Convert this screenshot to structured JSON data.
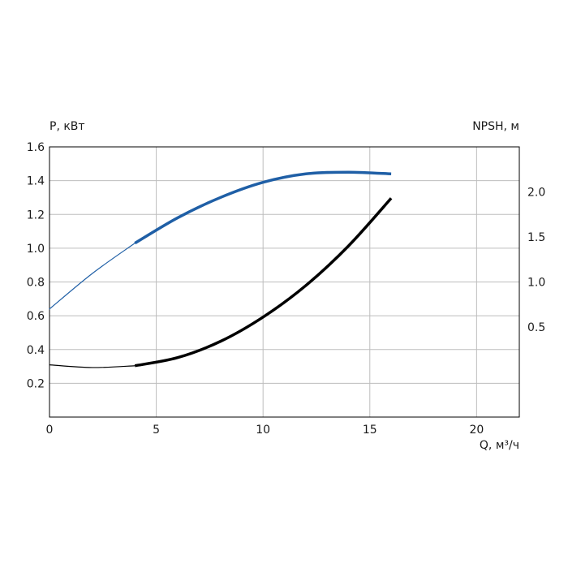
{
  "chart_data": {
    "type": "line",
    "left_axis_label": "P, кВт",
    "right_axis_label": "NPSH, м",
    "xlabel": "Q, м³/ч",
    "xlim": [
      0,
      22
    ],
    "ylim_left": [
      0,
      1.6
    ],
    "ylim_right": [
      -0.5,
      2.5
    ],
    "x_ticks": [
      "0",
      "5",
      "10",
      "15",
      "20"
    ],
    "x_tick_values": [
      0,
      5,
      10,
      15,
      20
    ],
    "y_left_ticks": [
      "0.2",
      "0.4",
      "0.6",
      "0.8",
      "1.0",
      "1.2",
      "1.4",
      "1.6"
    ],
    "y_left_tick_values": [
      0.2,
      0.4,
      0.6,
      0.8,
      1.0,
      1.2,
      1.4,
      1.6
    ],
    "y_right_ticks": [
      "0.5",
      "1.0",
      "1.5",
      "2.0"
    ],
    "y_right_tick_values": [
      0.5,
      1.0,
      1.5,
      2.0
    ],
    "grid": true,
    "series": [
      {
        "axis": "left",
        "color": "#1f5fa6",
        "x": [
          0,
          2,
          4,
          6,
          8,
          10,
          12,
          14,
          16
        ],
        "y": [
          0.64,
          0.85,
          1.03,
          1.18,
          1.3,
          1.39,
          1.44,
          1.45,
          1.44
        ],
        "thick_from": 4
      },
      {
        "axis": "right",
        "color": "#000000",
        "x": [
          0,
          2,
          4,
          6,
          8,
          10,
          12,
          14,
          16
        ],
        "y": [
          0.08,
          0.05,
          0.07,
          0.16,
          0.34,
          0.61,
          0.96,
          1.4,
          1.93
        ],
        "thick_from": 4
      }
    ]
  }
}
